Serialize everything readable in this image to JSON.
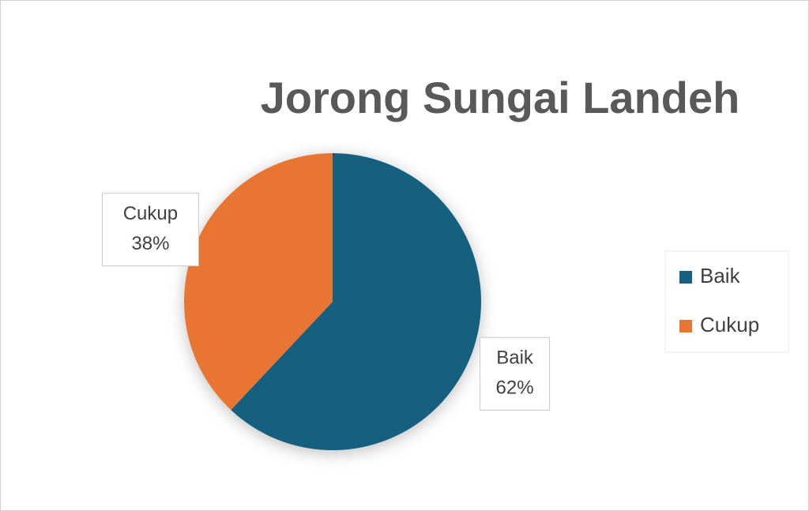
{
  "chart_data": {
    "type": "pie",
    "title": "Jorong Sungai Landeh",
    "categories": [
      "Baik",
      "Cukup"
    ],
    "values": [
      62,
      38
    ],
    "value_labels": [
      "62%",
      "38%"
    ],
    "colors": [
      "#17607f",
      "#e97532"
    ],
    "legend": "right"
  }
}
